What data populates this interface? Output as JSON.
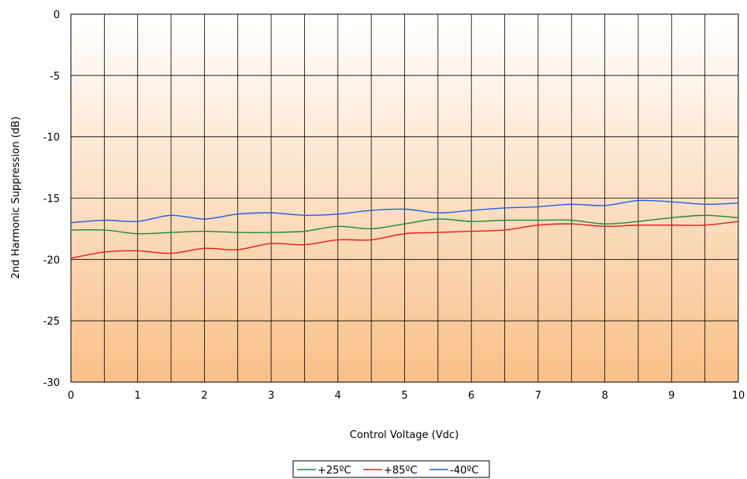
{
  "chart_data": {
    "type": "line",
    "title": "",
    "xlabel": "Control Voltage (Vdc)",
    "ylabel": "2nd Harmonic Suppression (dB)",
    "xlim": [
      0,
      10
    ],
    "ylim": [
      -30,
      0
    ],
    "xticks": [
      0,
      1,
      2,
      3,
      4,
      5,
      6,
      7,
      8,
      9,
      10
    ],
    "yticks": [
      0,
      -5,
      -10,
      -15,
      -20,
      -25,
      -30
    ],
    "x_grid_step": 0.5,
    "grid": true,
    "legend_position": "bottom-center",
    "background_gradient": [
      "#ffffff",
      "#f9c088"
    ],
    "x": [
      0,
      0.5,
      1,
      1.5,
      2,
      2.5,
      3,
      3.5,
      4,
      4.5,
      5,
      5.5,
      6,
      6.5,
      7,
      7.5,
      8,
      8.5,
      9,
      9.5,
      10
    ],
    "series": [
      {
        "name": "+25ºC",
        "color": "#1a8a3a",
        "values": [
          -17.6,
          -17.6,
          -17.9,
          -17.8,
          -17.7,
          -17.8,
          -17.8,
          -17.7,
          -17.3,
          -17.5,
          -17.1,
          -16.7,
          -16.9,
          -16.8,
          -16.8,
          -16.8,
          -17.1,
          -16.9,
          -16.6,
          -16.4,
          -16.6
        ]
      },
      {
        "name": "+85ºC",
        "color": "#e0201a",
        "values": [
          -19.9,
          -19.4,
          -19.3,
          -19.5,
          -19.1,
          -19.2,
          -18.7,
          -18.8,
          -18.4,
          -18.4,
          -17.9,
          -17.8,
          -17.7,
          -17.6,
          -17.2,
          -17.1,
          -17.3,
          -17.2,
          -17.2,
          -17.2,
          -16.9
        ]
      },
      {
        "name": "-40ºC",
        "color": "#1f5fe0",
        "values": [
          -17.0,
          -16.8,
          -16.9,
          -16.4,
          -16.7,
          -16.3,
          -16.2,
          -16.4,
          -16.3,
          -16.0,
          -15.9,
          -16.2,
          -16.0,
          -15.8,
          -15.7,
          -15.5,
          -15.6,
          -15.2,
          -15.3,
          -15.5,
          -15.4
        ]
      }
    ]
  }
}
